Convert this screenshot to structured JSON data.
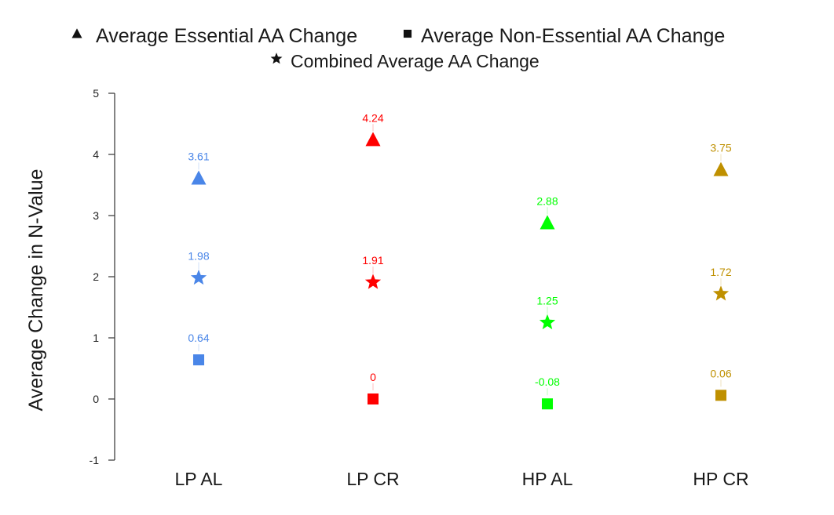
{
  "chart_data": {
    "type": "scatter",
    "title": "",
    "xlabel": "",
    "ylabel": "Average Change in N-Value",
    "ylim": [
      -1,
      5
    ],
    "yticks": [
      5,
      4,
      3,
      2,
      1,
      0,
      -1
    ],
    "grid": false,
    "legend_position": "top-center",
    "legend": [
      {
        "marker": "triangle",
        "label": "Average Essential AA Change"
      },
      {
        "marker": "square",
        "label": "Average Non-Essential AA Change"
      },
      {
        "marker": "star",
        "label": "Combined Average AA Change"
      }
    ],
    "categories": [
      "LP AL",
      "LP CR",
      "HP AL",
      "HP CR"
    ],
    "category_colors": [
      "#4a86e8",
      "#ff0000",
      "#00ff00",
      "#bf9000"
    ],
    "series": [
      {
        "name": "Average Essential AA Change",
        "marker": "triangle",
        "values": [
          3.61,
          4.24,
          2.88,
          3.75
        ],
        "labels": [
          "3.61",
          "4.24",
          "2.88",
          "3.75"
        ]
      },
      {
        "name": "Average Non-Essential AA Change",
        "marker": "square",
        "values": [
          0.64,
          0,
          -0.08,
          0.06
        ],
        "labels": [
          "0.64",
          "0",
          "-0.08",
          "0.06"
        ]
      },
      {
        "name": "Combined Average AA Change",
        "marker": "star",
        "values": [
          1.98,
          1.91,
          1.25,
          1.72
        ],
        "labels": [
          "1.98",
          "1.91",
          "1.25",
          "1.72"
        ]
      }
    ]
  }
}
